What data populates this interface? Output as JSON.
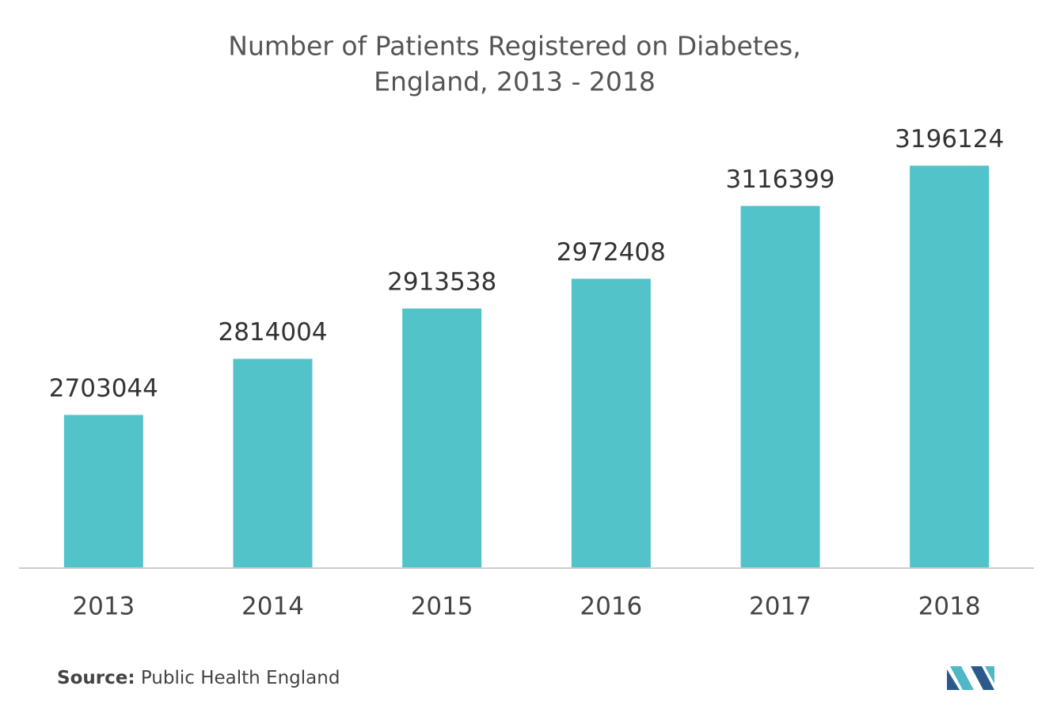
{
  "chart_data": {
    "type": "bar",
    "title": [
      "Number of Patients Registered on Diabetes,",
      "England, 2013 - 2018"
    ],
    "categories": [
      "2013",
      "2014",
      "2015",
      "2016",
      "2017",
      "2018"
    ],
    "values": [
      2703044,
      2814004,
      2913538,
      2972408,
      3116399,
      3196124
    ],
    "color": "#52c3c9",
    "ylim": [
      2400000,
      3300000
    ],
    "source_label": "Source:",
    "source": "Public Health England"
  }
}
